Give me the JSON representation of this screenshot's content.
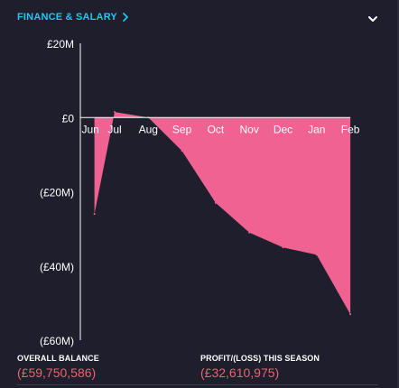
{
  "widget": {
    "title": "FINANCE & SALARY",
    "chevron_icon": "chevron-right-icon",
    "collapse_icon": "chevron-down-icon"
  },
  "colors": {
    "accent": "#1fc8f0",
    "area_fill": "#f06292",
    "negative_value": "#f06070",
    "background": "#1e1e2c"
  },
  "chart_data": {
    "type": "area",
    "categories": [
      "Jun",
      "Jul",
      "Aug",
      "Sep",
      "Oct",
      "Nov",
      "Dec",
      "Jan",
      "Feb"
    ],
    "x_month_positions": [
      -0.6,
      0,
      1,
      2,
      3,
      4,
      5,
      6,
      7
    ],
    "values_millions": [
      -26,
      1.5,
      0,
      -9,
      -23,
      -31,
      -35,
      -37,
      -53
    ],
    "y_ticks": [
      "£20M",
      "£0",
      "(£20M)",
      "(£40M)",
      "(£60M)"
    ],
    "y_tick_values": [
      20,
      0,
      -20,
      -40,
      -60
    ],
    "ylim": [
      -60,
      20
    ],
    "grid": false
  },
  "footer": {
    "overall_balance_label": "OVERALL BALANCE",
    "overall_balance_value": "(£59,750,586)",
    "profit_loss_label": "PROFIT/(LOSS) THIS SEASON",
    "profit_loss_value": "(£32,610,975)"
  }
}
